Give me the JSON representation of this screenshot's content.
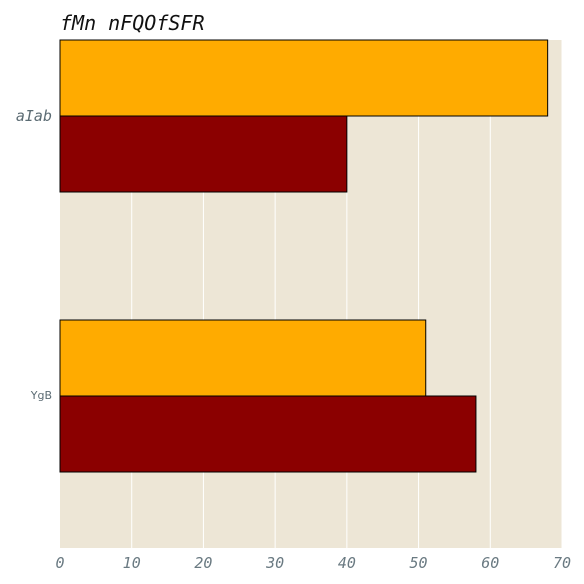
{
  "chart_data": {
    "type": "bar",
    "orientation": "horizontal",
    "title": "fMn nFQOfSFR",
    "categories": [
      "aIab",
      "YgB"
    ],
    "series": [
      {
        "color": "#ffab00",
        "values": [
          68,
          51
        ]
      },
      {
        "color": "#8b0000",
        "values": [
          40,
          58
        ]
      }
    ],
    "xlim": [
      0,
      70
    ],
    "xticks": [
      "0",
      "10",
      "20",
      "30",
      "40",
      "50",
      "60",
      "70"
    ],
    "grid": true,
    "legend": "none",
    "background": "#ede6d6",
    "grid_color": "#ffffff"
  }
}
